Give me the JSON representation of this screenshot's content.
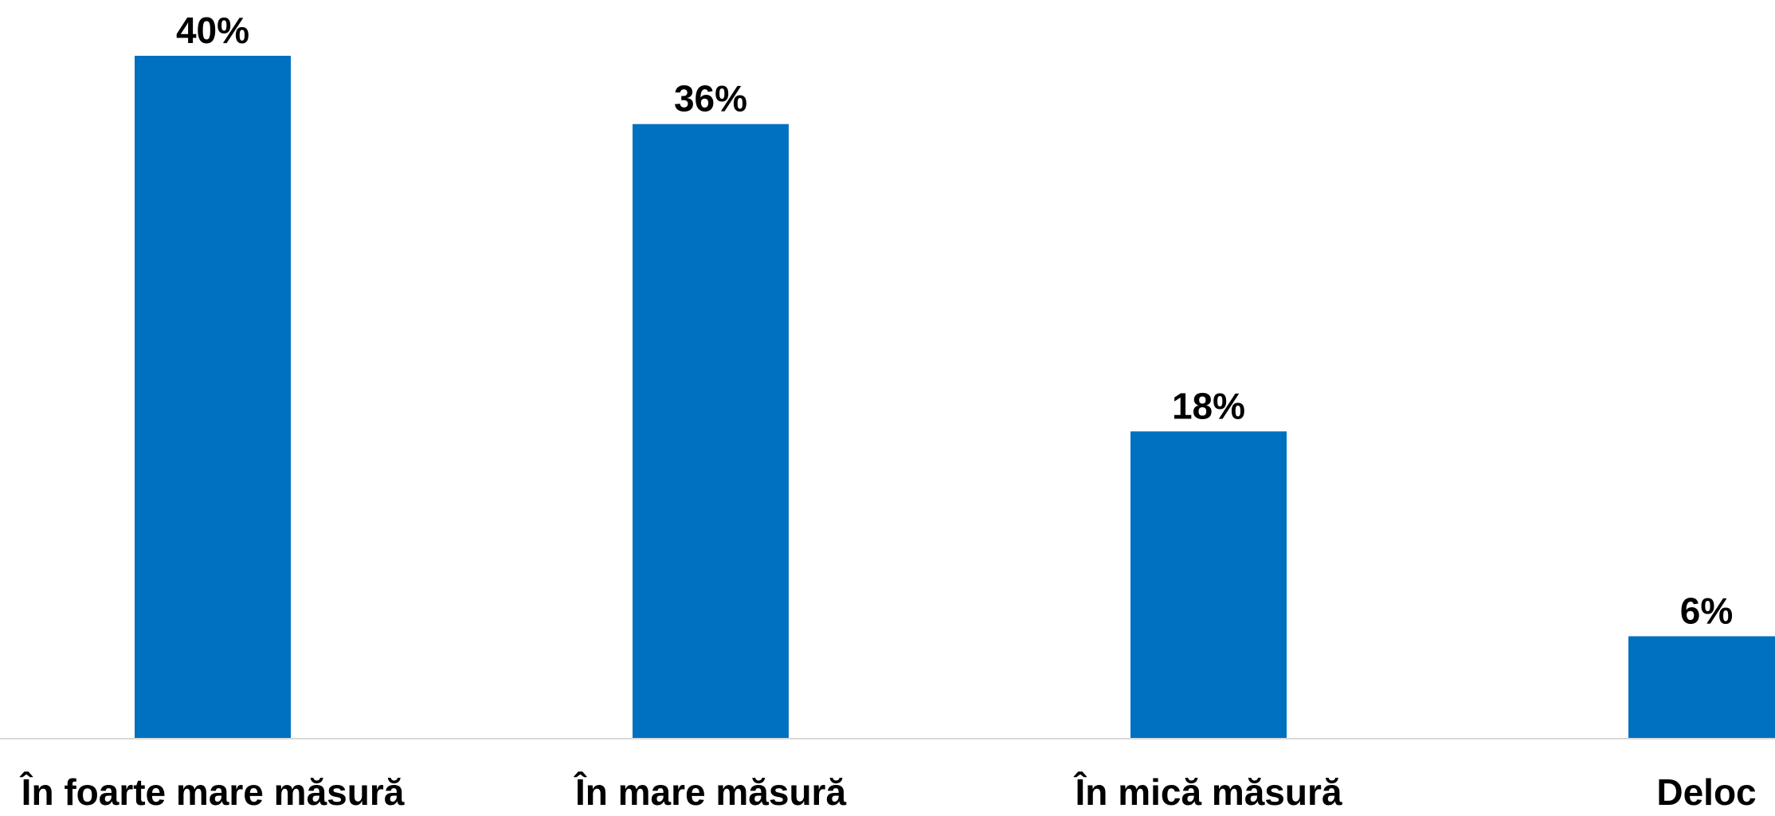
{
  "chart_data": {
    "type": "bar",
    "title": "",
    "xlabel": "",
    "ylabel": "",
    "categories": [
      "În foarte mare măsură",
      "În mare măsură",
      "În mică măsură",
      "Deloc"
    ],
    "values": [
      40,
      36,
      18,
      6
    ],
    "data_labels": [
      "40%",
      "36%",
      "18%",
      "6%"
    ],
    "ylim": [
      0,
      40
    ],
    "grid": false,
    "legend": "none",
    "colors": {
      "bar": "#0070C0",
      "axis": "#D9D9D9",
      "text": "#000000"
    }
  }
}
